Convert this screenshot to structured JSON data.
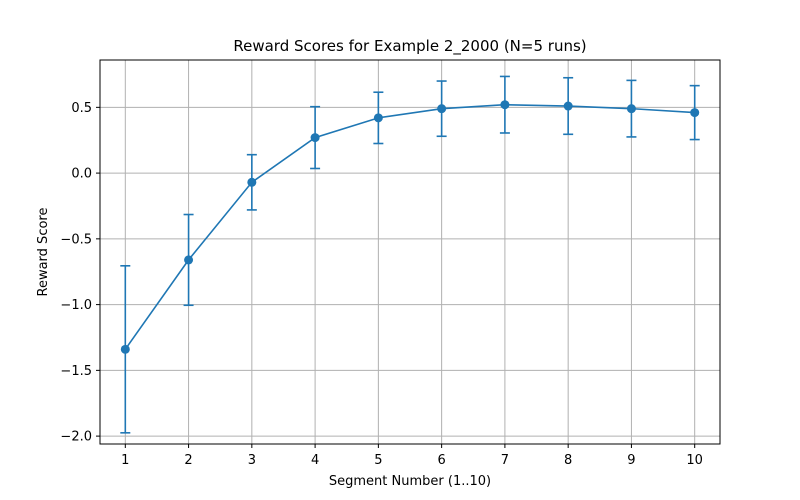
{
  "chart_data": {
    "type": "line",
    "title": "Reward Scores for Example 2_2000 (N=5 runs)",
    "xlabel": "Segment Number (1..10)",
    "ylabel": "Reward Score",
    "x": [
      1,
      2,
      3,
      4,
      5,
      6,
      7,
      8,
      9,
      10
    ],
    "x_ticks": [
      "1",
      "2",
      "3",
      "4",
      "5",
      "6",
      "7",
      "8",
      "9",
      "10"
    ],
    "y_ticks": [
      {
        "value": -2.0,
        "label": "−2.0"
      },
      {
        "value": -1.5,
        "label": "−1.5"
      },
      {
        "value": -1.0,
        "label": "−1.0"
      },
      {
        "value": -0.5,
        "label": "−0.5"
      },
      {
        "value": 0.0,
        "label": "0.0"
      },
      {
        "value": 0.5,
        "label": "0.5"
      }
    ],
    "xlim": [
      0.6,
      10.4
    ],
    "ylim": [
      -2.06,
      0.86
    ],
    "grid": true,
    "series": [
      {
        "values": [
          -1.34,
          -0.66,
          -0.07,
          0.27,
          0.42,
          0.49,
          0.52,
          0.51,
          0.49,
          0.46
        ],
        "error": [
          0.635,
          0.345,
          0.21,
          0.235,
          0.195,
          0.21,
          0.215,
          0.215,
          0.215,
          0.205
        ]
      }
    ],
    "colors": {
      "series": "#1f77b4",
      "grid": "#b0b0b0",
      "axis": "#000000"
    }
  }
}
